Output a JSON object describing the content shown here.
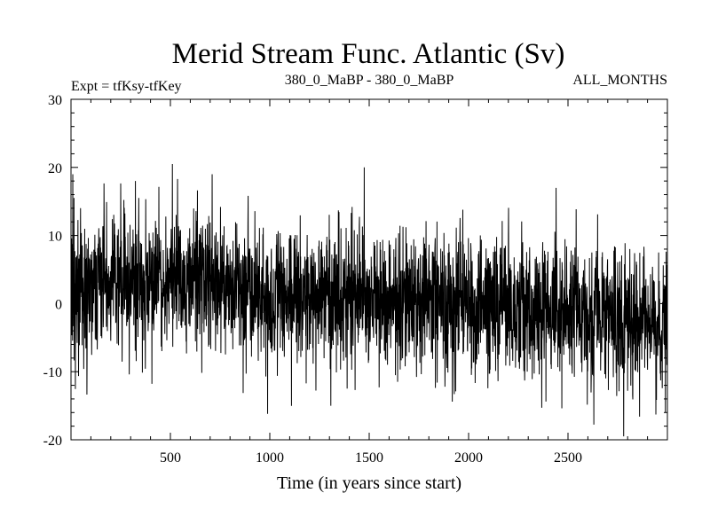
{
  "chart_data": {
    "type": "line",
    "title": "Merid Stream Func. Atlantic (Sv)",
    "subtitle_left": "Expt = tfKsy-tfKey",
    "subtitle_center": "380_0_MaBP - 380_0_MaBP",
    "subtitle_right": "ALL_MONTHS",
    "xlabel": "Time (in years since start)",
    "ylabel": "",
    "xlim": [
      0,
      3000
    ],
    "ylim": [
      -20,
      30
    ],
    "xticks": [
      500,
      1000,
      1500,
      2000,
      2500
    ],
    "yticks": [
      -20,
      -10,
      0,
      10,
      20,
      30
    ],
    "series": [
      {
        "name": "Merid Stream Func. Atlantic",
        "color": "#000000",
        "n_points": 3000,
        "trend": [
          {
            "x": 0,
            "mean": 2.0
          },
          {
            "x": 500,
            "mean": 3.5
          },
          {
            "x": 1000,
            "mean": 1.0
          },
          {
            "x": 1500,
            "mean": 0.5
          },
          {
            "x": 2000,
            "mean": 0.0
          },
          {
            "x": 2500,
            "mean": -1.0
          },
          {
            "x": 3000,
            "mean": -2.5
          }
        ],
        "noise_std": 5.0,
        "peaks": [
          {
            "x": 510,
            "value": 20.5
          },
          {
            "x": 1475,
            "value": 20.0
          },
          {
            "x": 2440,
            "value": 17.0
          },
          {
            "x": 2780,
            "value": -19.5
          },
          {
            "x": 2990,
            "value": -16.0
          }
        ]
      }
    ]
  }
}
